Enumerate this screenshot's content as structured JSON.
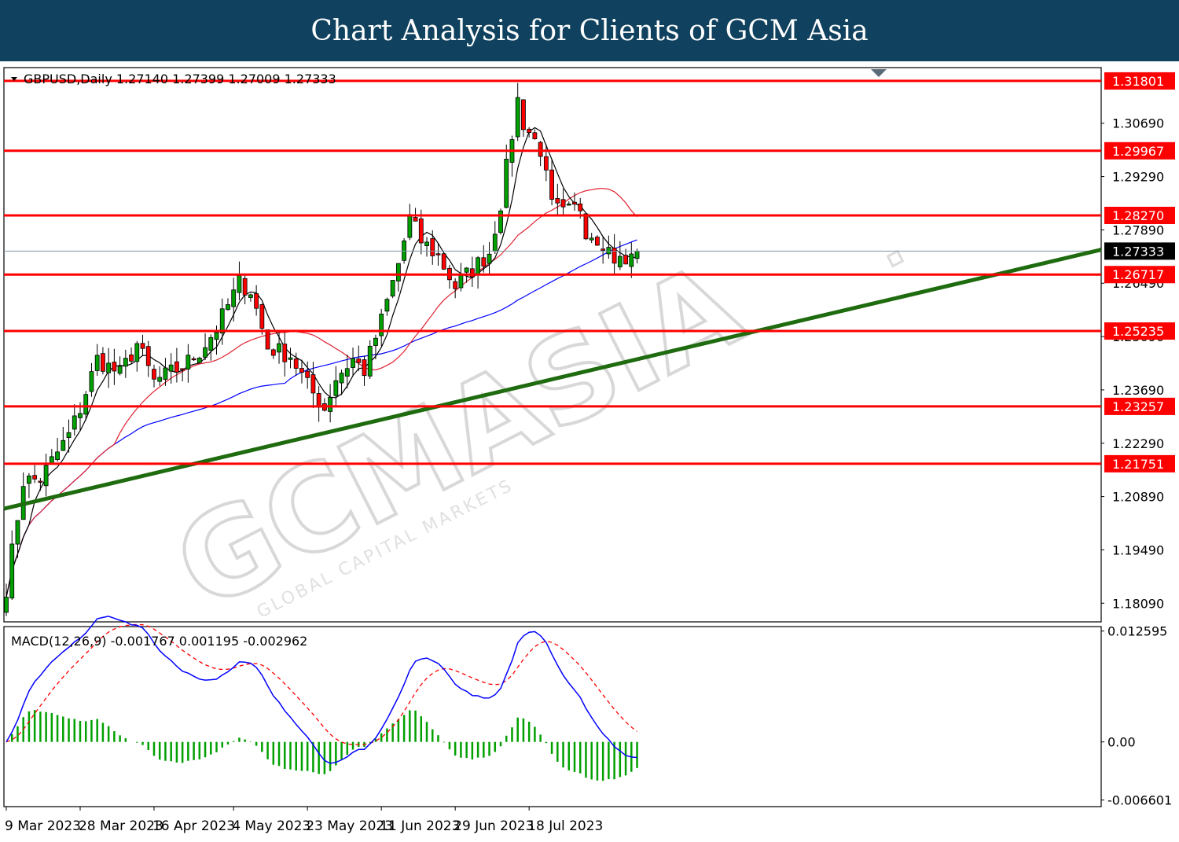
{
  "banner": {
    "title": "Chart Analysis for Clients of GCM Asia"
  },
  "chart_data": [
    {
      "type": "candlestick",
      "title": "GBPUSD,Daily  1.27140 1.27399 1.27009 1.27333",
      "symbol": "GBPUSD",
      "timeframe": "Daily",
      "ohlc_last": {
        "open": 1.2714,
        "high": 1.27399,
        "low": 1.27009,
        "close": 1.27333
      },
      "ylim": [
        1.176,
        1.3215
      ],
      "y_ticks": [
        "1.30690",
        "1.29290",
        "1.27890",
        "1.26490",
        "1.25090",
        "1.23690",
        "1.22290",
        "1.20890",
        "1.19490",
        "1.18090"
      ],
      "x_labels": [
        "9 Mar 2023",
        "28 Mar 2023",
        "16 Apr 2023",
        "4 May 2023",
        "23 May 2023",
        "11 Jun 2023",
        "29 Jun 2023",
        "18 Jul 2023"
      ],
      "current_price": "1.27333",
      "levels": [
        "1.31801",
        "1.29967",
        "1.28270",
        "1.26717",
        "1.25235",
        "1.23257",
        "1.21751"
      ],
      "trendline": {
        "label": "",
        "from": {
          "date": "2023-03-09",
          "price": 1.2057
        },
        "to": {
          "date": "2023-08-17",
          "price": 1.2737
        }
      },
      "close_path": [
        {
          "date": "2023-03-09",
          "close": 1.185
        },
        {
          "date": "2023-03-14",
          "close": 1.213
        },
        {
          "date": "2023-03-18",
          "close": 1.2135
        },
        {
          "date": "2023-03-24",
          "close": 1.225
        },
        {
          "date": "2023-03-28",
          "close": 1.232
        },
        {
          "date": "2023-04-01",
          "close": 1.245
        },
        {
          "date": "2023-04-06",
          "close": 1.241
        },
        {
          "date": "2023-04-11",
          "close": 1.249
        },
        {
          "date": "2023-04-16",
          "close": 1.239
        },
        {
          "date": "2023-04-21",
          "close": 1.243
        },
        {
          "date": "2023-04-26",
          "close": 1.247
        },
        {
          "date": "2023-05-01",
          "close": 1.253
        },
        {
          "date": "2023-05-05",
          "close": 1.265
        },
        {
          "date": "2023-05-09",
          "close": 1.263
        },
        {
          "date": "2023-05-13",
          "close": 1.248
        },
        {
          "date": "2023-05-18",
          "close": 1.246
        },
        {
          "date": "2023-05-23",
          "close": 1.238
        },
        {
          "date": "2023-05-26",
          "close": 1.232
        },
        {
          "date": "2023-05-30",
          "close": 1.24
        },
        {
          "date": "2023-06-03",
          "close": 1.245
        },
        {
          "date": "2023-06-06",
          "close": 1.242
        },
        {
          "date": "2023-06-10",
          "close": 1.255
        },
        {
          "date": "2023-06-14",
          "close": 1.27
        },
        {
          "date": "2023-06-16",
          "close": 1.282
        },
        {
          "date": "2023-06-20",
          "close": 1.276
        },
        {
          "date": "2023-06-24",
          "close": 1.272
        },
        {
          "date": "2023-06-28",
          "close": 1.264
        },
        {
          "date": "2023-07-02",
          "close": 1.267
        },
        {
          "date": "2023-07-06",
          "close": 1.273
        },
        {
          "date": "2023-07-10",
          "close": 1.286
        },
        {
          "date": "2023-07-13",
          "close": 1.313
        },
        {
          "date": "2023-07-16",
          "close": 1.307
        },
        {
          "date": "2023-07-19",
          "close": 1.3
        },
        {
          "date": "2023-07-22",
          "close": 1.285
        },
        {
          "date": "2023-07-25",
          "close": 1.283
        },
        {
          "date": "2023-07-28",
          "close": 1.285
        },
        {
          "date": "2023-07-31",
          "close": 1.279
        },
        {
          "date": "2023-08-03",
          "close": 1.276
        },
        {
          "date": "2023-08-07",
          "close": 1.2715
        },
        {
          "date": "2023-08-09",
          "close": 1.27
        },
        {
          "date": "2023-08-11",
          "close": 1.2733
        }
      ],
      "colors": {
        "levels": "#ff0000",
        "trendline": "#1f6b0f",
        "candle_bull": "#00a000",
        "candle_bear": "#ff0000",
        "wick": "#000000",
        "ma_fast": "#000000",
        "ma_mid": "#e02030",
        "ma_slow": "#0000ff",
        "current_price_line": "#7f97a8"
      }
    },
    {
      "type": "macd",
      "title": "MACD(12,26,9) -0.001767 0.001195 -0.002962",
      "params": [
        12,
        26,
        9
      ],
      "values": {
        "macd": -0.001767,
        "signal": 0.001195,
        "histogram": -0.002962
      },
      "ylim": [
        -0.00735,
        0.0131
      ],
      "y_ticks": [
        "0.012595",
        "0.00",
        "-0.006601"
      ],
      "colors": {
        "macd": "#0000ff",
        "signal": "#ff0000",
        "histogram": "#00a000"
      }
    }
  ],
  "watermark": {
    "text": "GCMASIA",
    "subtext": "GLOBAL CAPITAL MARKETS"
  }
}
